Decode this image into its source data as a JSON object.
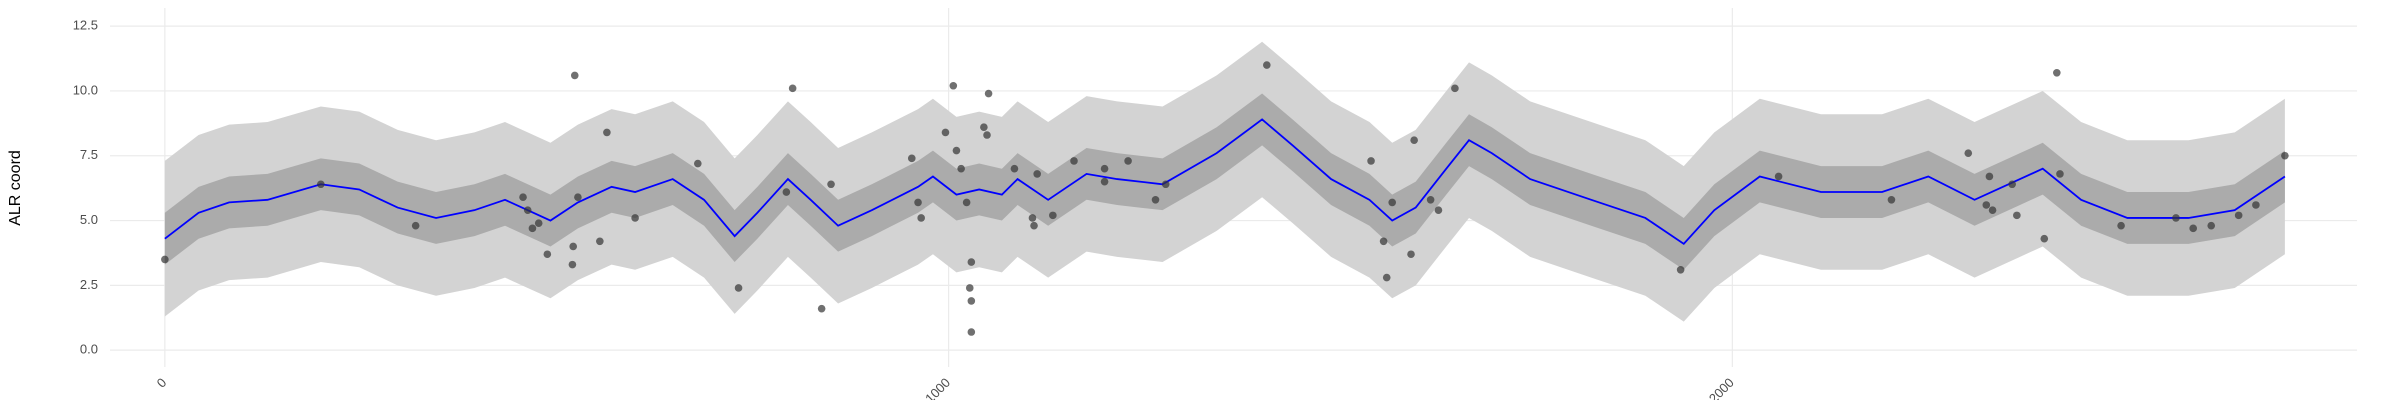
{
  "chart_data": {
    "type": "line",
    "ylabel": "ALR coord",
    "xlim": [
      -70,
      2797
    ],
    "ylim": [
      -0.65,
      13.2
    ],
    "xticks": [
      0,
      1000,
      2000
    ],
    "yticks": [
      {
        "value": 0,
        "label": "0.0"
      },
      2.5,
      {
        "value": 5,
        "label": "5.0"
      },
      7.5,
      {
        "value": 10,
        "label": "10.0"
      },
      12.5
    ],
    "grid": true,
    "x": [
      0,
      43,
      82,
      131,
      199,
      248,
      297,
      346,
      395,
      434,
      463,
      492,
      527,
      570,
      600,
      648,
      688,
      727,
      756,
      795,
      824,
      859,
      902,
      961,
      980,
      1010,
      1039,
      1068,
      1088,
      1127,
      1176,
      1215,
      1273,
      1342,
      1400,
      1439,
      1488,
      1537,
      1566,
      1596,
      1635,
      1664,
      1693,
      1742,
      1820,
      1889,
      1938,
      1977,
      2035,
      2113,
      2191,
      2250,
      2309,
      2367,
      2396,
      2445,
      2504,
      2582,
      2641,
      2705
    ],
    "bands": [
      {
        "color": "#d3d3d3",
        "lower": [
          1.3,
          2.3,
          2.7,
          2.8,
          3.4,
          3.2,
          2.5,
          2.1,
          2.4,
          2.8,
          2.4,
          2.0,
          2.7,
          3.3,
          3.1,
          3.6,
          2.8,
          1.4,
          2.3,
          3.6,
          2.8,
          1.8,
          2.4,
          3.3,
          3.7,
          3.0,
          3.2,
          3.0,
          3.6,
          2.8,
          3.8,
          3.6,
          3.4,
          4.6,
          5.9,
          4.9,
          3.6,
          2.8,
          2.0,
          2.5,
          4.0,
          5.1,
          4.6,
          3.6,
          2.8,
          2.1,
          1.1,
          2.4,
          3.7,
          3.1,
          3.1,
          3.7,
          2.8,
          3.6,
          4.0,
          2.8,
          2.1,
          2.1,
          2.4,
          3.7
        ],
        "upper": [
          7.3,
          8.3,
          8.7,
          8.8,
          9.4,
          9.2,
          8.5,
          8.1,
          8.4,
          8.8,
          8.4,
          8.0,
          8.7,
          9.3,
          9.1,
          9.6,
          8.8,
          7.4,
          8.3,
          9.6,
          8.8,
          7.8,
          8.4,
          9.3,
          9.7,
          9.0,
          9.2,
          9.0,
          9.6,
          8.8,
          9.8,
          9.6,
          9.4,
          10.6,
          11.9,
          10.9,
          9.6,
          8.8,
          8.0,
          8.5,
          10.0,
          11.1,
          10.6,
          9.6,
          8.8,
          8.1,
          7.1,
          8.4,
          9.7,
          9.1,
          9.1,
          9.7,
          8.8,
          9.6,
          10.0,
          8.8,
          8.1,
          8.1,
          8.4,
          9.7
        ]
      },
      {
        "color": "#ababab",
        "lower": [
          3.3,
          4.3,
          4.7,
          4.8,
          5.4,
          5.2,
          4.5,
          4.1,
          4.4,
          4.8,
          4.4,
          4.0,
          4.7,
          5.3,
          5.1,
          5.6,
          4.8,
          3.4,
          4.3,
          5.6,
          4.8,
          3.8,
          4.4,
          5.3,
          5.7,
          5.0,
          5.2,
          5.0,
          5.6,
          4.8,
          5.8,
          5.6,
          5.4,
          6.6,
          7.9,
          6.9,
          5.6,
          4.8,
          4.0,
          4.5,
          6.0,
          7.1,
          6.6,
          5.6,
          4.8,
          4.1,
          3.1,
          4.4,
          5.7,
          5.1,
          5.1,
          5.7,
          4.8,
          5.6,
          6.0,
          4.8,
          4.1,
          4.1,
          4.4,
          5.7
        ],
        "upper": [
          5.3,
          6.3,
          6.7,
          6.8,
          7.4,
          7.2,
          6.5,
          6.1,
          6.4,
          6.8,
          6.4,
          6.0,
          6.7,
          7.3,
          7.1,
          7.6,
          6.8,
          5.4,
          6.3,
          7.6,
          6.8,
          5.8,
          6.4,
          7.3,
          7.7,
          7.0,
          7.2,
          7.0,
          7.6,
          6.8,
          7.8,
          7.6,
          7.4,
          8.6,
          9.9,
          8.9,
          7.6,
          6.8,
          6.0,
          6.5,
          8.0,
          9.1,
          8.6,
          7.6,
          6.8,
          6.1,
          5.1,
          6.4,
          7.7,
          7.1,
          7.1,
          7.7,
          6.8,
          7.6,
          8.0,
          6.8,
          6.1,
          6.1,
          6.4,
          7.7
        ]
      }
    ],
    "line": {
      "color": "#0000ff",
      "values": [
        4.3,
        5.3,
        5.7,
        5.8,
        6.4,
        6.2,
        5.5,
        5.1,
        5.4,
        5.8,
        5.4,
        5.0,
        5.7,
        6.3,
        6.1,
        6.6,
        5.8,
        4.4,
        5.3,
        6.6,
        5.8,
        4.8,
        5.4,
        6.3,
        6.7,
        6.0,
        6.2,
        6.0,
        6.6,
        5.8,
        6.8,
        6.6,
        6.4,
        7.6,
        8.9,
        7.9,
        6.6,
        5.8,
        5.0,
        5.5,
        7.0,
        8.1,
        7.6,
        6.6,
        5.8,
        5.1,
        4.1,
        5.4,
        6.7,
        6.1,
        6.1,
        6.7,
        5.8,
        6.6,
        7.0,
        5.8,
        5.1,
        5.1,
        5.4,
        6.7
      ]
    },
    "points": {
      "color": "#333333",
      "x": [
        0,
        199,
        320,
        457,
        463,
        469,
        477,
        488,
        520,
        521,
        523,
        527,
        555,
        564,
        600,
        680,
        732,
        793,
        801,
        838,
        850,
        953,
        961,
        965,
        996,
        1006,
        1010,
        1016,
        1023,
        1027,
        1029,
        1029,
        1029,
        1045,
        1049,
        1051,
        1084,
        1107,
        1109,
        1113,
        1133,
        1160,
        1199,
        1199,
        1229,
        1264,
        1277,
        1406,
        1539,
        1555,
        1559,
        1566,
        1590,
        1594,
        1615,
        1625,
        1646,
        1934,
        2059,
        2203,
        2328,
        2301,
        2324,
        2332,
        2357,
        2363,
        2398,
        2414,
        2418,
        2496,
        2566,
        2588,
        2611,
        2646,
        2668,
        2705
      ],
      "y": [
        3.5,
        6.4,
        4.8,
        5.9,
        5.4,
        4.7,
        4.9,
        3.7,
        3.3,
        4.0,
        10.6,
        5.9,
        4.2,
        8.4,
        5.1,
        7.2,
        2.4,
        6.1,
        10.1,
        1.6,
        6.4,
        7.4,
        5.7,
        5.1,
        8.4,
        10.2,
        7.7,
        7.0,
        5.7,
        2.4,
        3.4,
        1.9,
        0.7,
        8.6,
        8.3,
        9.9,
        7.0,
        5.1,
        4.8,
        6.8,
        5.2,
        7.3,
        6.5,
        7.0,
        7.3,
        5.8,
        6.4,
        11.0,
        7.3,
        4.2,
        2.8,
        5.7,
        3.7,
        8.1,
        5.8,
        5.4,
        10.1,
        3.1,
        6.7,
        5.8,
        6.7,
        7.6,
        5.6,
        5.4,
        6.4,
        5.2,
        4.3,
        10.7,
        6.8,
        4.8,
        5.1,
        4.7,
        4.8,
        5.2,
        5.6,
        7.5
      ]
    }
  }
}
